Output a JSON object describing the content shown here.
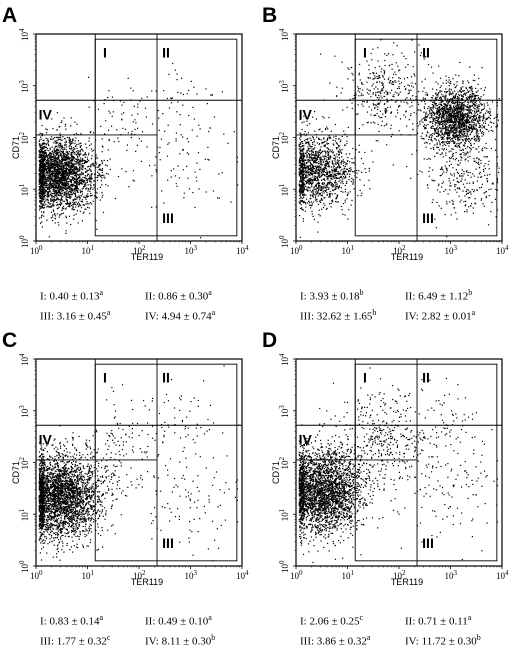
{
  "chart_data": [
    {
      "type": "scatter",
      "panel": "A",
      "xlabel": "TER119",
      "ylabel": "CD71",
      "xscale": "log",
      "yscale": "log",
      "xlim": [
        1,
        10000
      ],
      "ylim": [
        1,
        10000
      ],
      "tick_labels": [
        "10",
        "0",
        "10",
        "1",
        "10",
        "2",
        "10",
        "3",
        "10",
        "4"
      ],
      "quadrants": [
        "I",
        "II",
        "III",
        "IV"
      ],
      "populations": [
        {
          "name": "IV",
          "log_x": 0.45,
          "log_y": 1.3,
          "spread": 0.35,
          "n": 2600
        },
        {
          "name": "I",
          "log_x": 1.6,
          "log_y": 2.3,
          "spread": 0.35,
          "n": 60
        },
        {
          "name": "II",
          "log_x": 2.8,
          "log_y": 2.6,
          "spread": 0.4,
          "n": 50
        },
        {
          "name": "III",
          "log_x": 2.8,
          "log_y": 1.5,
          "spread": 0.6,
          "n": 90
        }
      ],
      "stats": [
        {
          "quadrant": "I:",
          "mean": "0.40",
          "pm": "±",
          "sd": "0.13",
          "sig": "a"
        },
        {
          "quadrant": "II:",
          "mean": "0.86",
          "pm": "±",
          "sd": "0.30",
          "sig": "a"
        },
        {
          "quadrant": "III:",
          "mean": "3.16",
          "pm": "±",
          "sd": "0.45",
          "sig": "a"
        },
        {
          "quadrant": "IV:",
          "mean": "4.94",
          "pm": "±",
          "sd": "0.74",
          "sig": "a"
        }
      ]
    },
    {
      "type": "scatter",
      "panel": "B",
      "xlabel": "TER119",
      "ylabel": "CD71",
      "xscale": "log",
      "yscale": "log",
      "xlim": [
        1,
        10000
      ],
      "ylim": [
        1,
        10000
      ],
      "tick_labels": [
        "10",
        "0",
        "10",
        "1",
        "10",
        "2",
        "10",
        "3",
        "10",
        "4"
      ],
      "quadrants": [
        "I",
        "II",
        "III",
        "IV"
      ],
      "populations": [
        {
          "name": "IV",
          "log_x": 0.4,
          "log_y": 1.35,
          "spread": 0.35,
          "n": 1400
        },
        {
          "name": "I",
          "log_x": 1.7,
          "log_y": 2.9,
          "spread": 0.4,
          "n": 350
        },
        {
          "name": "II",
          "log_x": 3.1,
          "log_y": 2.4,
          "spread": 0.3,
          "n": 1700
        },
        {
          "name": "III",
          "log_x": 3.2,
          "log_y": 1.3,
          "spread": 0.4,
          "n": 300
        }
      ],
      "stats": [
        {
          "quadrant": "I:",
          "mean": "3.93",
          "pm": "±",
          "sd": "0.18",
          "sig": "b"
        },
        {
          "quadrant": "II:",
          "mean": "6.49",
          "pm": "±",
          "sd": "1.12",
          "sig": "b"
        },
        {
          "quadrant": "III:",
          "mean": "32.62",
          "pm": "±",
          "sd": "1.65",
          "sig": "b"
        },
        {
          "quadrant": "IV:",
          "mean": "2.82",
          "pm": "±",
          "sd": "0.01",
          "sig": "a"
        }
      ]
    },
    {
      "type": "scatter",
      "panel": "C",
      "xlabel": "TER119",
      "ylabel": "CD71",
      "xscale": "log",
      "yscale": "log",
      "xlim": [
        1,
        10000
      ],
      "ylim": [
        1,
        10000
      ],
      "tick_labels": [
        "10",
        "0",
        "10",
        "1",
        "10",
        "2",
        "10",
        "3",
        "10",
        "4"
      ],
      "quadrants": [
        "I",
        "II",
        "III",
        "IV"
      ],
      "populations": [
        {
          "name": "IV",
          "log_x": 0.45,
          "log_y": 1.35,
          "spread": 0.4,
          "n": 3000
        },
        {
          "name": "I",
          "log_x": 1.6,
          "log_y": 2.3,
          "spread": 0.4,
          "n": 120
        },
        {
          "name": "II",
          "log_x": 2.9,
          "log_y": 2.8,
          "spread": 0.4,
          "n": 60
        },
        {
          "name": "III",
          "log_x": 2.9,
          "log_y": 1.4,
          "spread": 0.6,
          "n": 110
        }
      ],
      "stats": [
        {
          "quadrant": "I:",
          "mean": "0.83",
          "pm": "±",
          "sd": "0.14",
          "sig": "a"
        },
        {
          "quadrant": "II:",
          "mean": "0.49",
          "pm": "±",
          "sd": "0.10",
          "sig": "a"
        },
        {
          "quadrant": "III:",
          "mean": "1.77",
          "pm": "±",
          "sd": "0.32",
          "sig": "c"
        },
        {
          "quadrant": "IV:",
          "mean": "8.11",
          "pm": "±",
          "sd": "0.30",
          "sig": "b"
        }
      ]
    },
    {
      "type": "scatter",
      "panel": "D",
      "xlabel": "TER119",
      "ylabel": "CD71",
      "xscale": "log",
      "yscale": "log",
      "xlim": [
        1,
        10000
      ],
      "ylim": [
        1,
        10000
      ],
      "tick_labels": [
        "10",
        "0",
        "10",
        "1",
        "10",
        "2",
        "10",
        "3",
        "10",
        "4"
      ],
      "quadrants": [
        "I",
        "II",
        "III",
        "IV"
      ],
      "populations": [
        {
          "name": "IV",
          "log_x": 0.5,
          "log_y": 1.45,
          "spread": 0.4,
          "n": 2800
        },
        {
          "name": "I",
          "log_x": 1.7,
          "log_y": 2.5,
          "spread": 0.45,
          "n": 350
        },
        {
          "name": "II",
          "log_x": 2.9,
          "log_y": 2.7,
          "spread": 0.4,
          "n": 80
        },
        {
          "name": "III",
          "log_x": 3.0,
          "log_y": 1.5,
          "spread": 0.55,
          "n": 130
        }
      ],
      "stats": [
        {
          "quadrant": "I:",
          "mean": "2.06",
          "pm": "±",
          "sd": "0.25",
          "sig": "c"
        },
        {
          "quadrant": "II:",
          "mean": "0.71",
          "pm": "±",
          "sd": "0.11",
          "sig": "a"
        },
        {
          "quadrant": "III:",
          "mean": "3.86",
          "pm": "±",
          "sd": "0.32",
          "sig": "a"
        },
        {
          "quadrant": "IV:",
          "mean": "11.72",
          "pm": "±",
          "sd": "0.30",
          "sig": "b"
        }
      ]
    }
  ]
}
